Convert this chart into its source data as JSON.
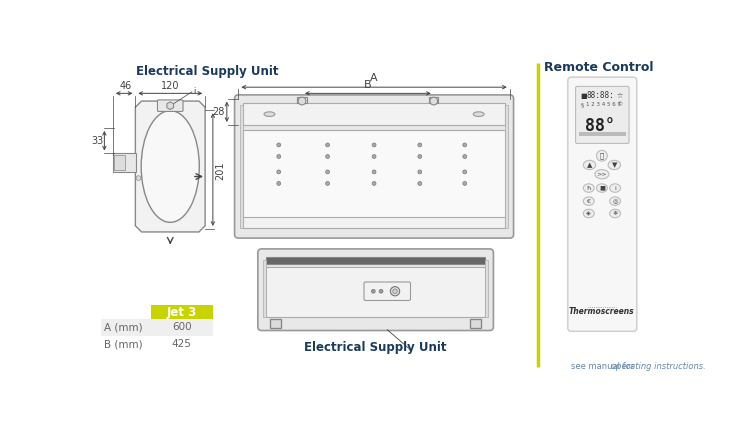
{
  "elec_supply_label": "Electrical Supply Unit",
  "remote_control_label": "Remote Control",
  "elec_supply_label2": "Electrical Supply Unit",
  "jet3_label": "Jet 3",
  "jet3_color": "#c8d400",
  "table_rows": [
    [
      "A (mm)",
      "600"
    ],
    [
      "B (mm)",
      "425"
    ]
  ],
  "dim_46": "46",
  "dim_120": "120",
  "dim_33": "33",
  "dim_201": "201",
  "dim_28": "28",
  "dim_A": "A",
  "dim_B": "B",
  "bg_color": "#ffffff",
  "line_color": "#aaaaaa",
  "text_color": "#666666",
  "dark_text": "#444444",
  "title_color": "#1a3a5c",
  "remote_title_color": "#1a3a5c",
  "see_manual_color": "#6688aa",
  "thermoscreens_label": "Thermoscreens",
  "separator_color": "#c8d400",
  "diagram_line": "#888888",
  "diagram_fill": "#f2f2f2",
  "diagram_fill2": "#e8e8e8",
  "diagram_fill3": "#dddddd"
}
